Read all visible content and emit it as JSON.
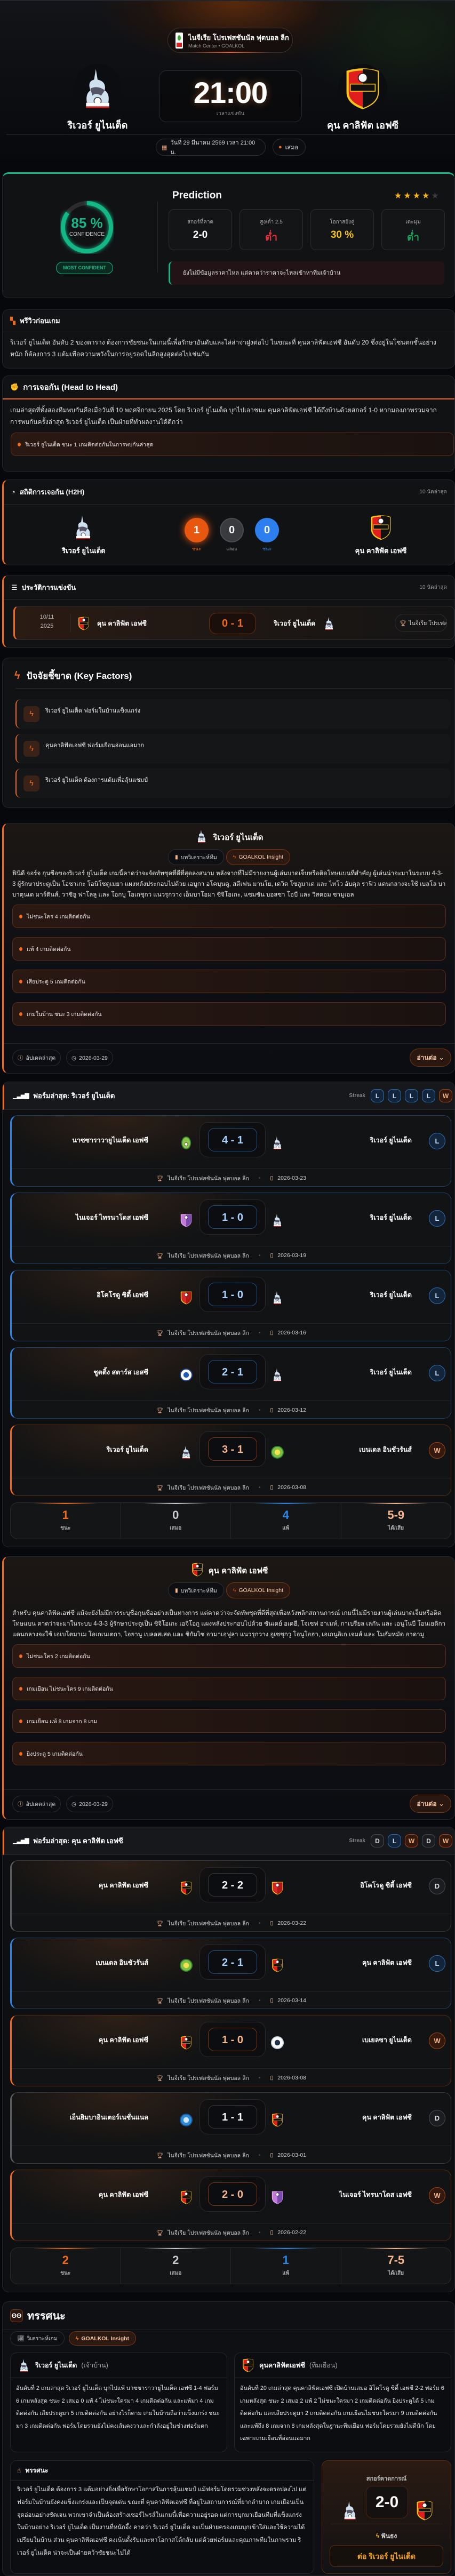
{
  "hero": {
    "league": "ไนจีเรีย โปรเฟสชันนัล ฟุตบอล ลีก",
    "subtitle": "Match Center • GOALKOL",
    "home": "ริเวอร์ ยูไนเต็ด",
    "away": "คุน คาลิฟัต เอฟซี",
    "time": "21:00",
    "time_label": "เวลาแข่งขัน",
    "date": "วันที่ 29 มีนาคม 2569 เวลา 21:00 น.",
    "venue": "เสมอ"
  },
  "prediction": {
    "confidence": "85 %",
    "confidence_value": 85,
    "confidence_label": "CONFIDENCE",
    "badge": "MOST CONFIDENT",
    "title": "Prediction",
    "stars": 4,
    "stars_max": 5,
    "stats": [
      {
        "label": "สกอร์ที่คาด",
        "value": "2-0",
        "color": "#ffffff"
      },
      {
        "label": "สูง/ต่ำ 2.5",
        "value": "ต่ำ",
        "color": "#e0323c"
      },
      {
        "label": "โอกาสยิงคู่",
        "value": "30 %",
        "color": "#f5c518"
      },
      {
        "label": "เตะมุม",
        "value": "ต่ำ",
        "color": "#1e9e5a"
      }
    ],
    "note": "ยังไม่มีข้อมูลราคาไหล แต่คาดว่าราคาจะไหลเข้าหาทีมเจ้าบ้าน"
  },
  "preview": {
    "title": "พรีวิวก่อนเกม",
    "text": "ริเวอร์ ยูไนเต็ด อันดับ 2 ของตาราง ต้องการชัยชนะในเกมนี้เพื่อรักษาอันดับและไล่ล่าจ่าฝูงต่อไป ในขณะที่ คุนคาลิฟัตเอฟซี อันดับ 20 ซึ่งอยู่ในโซนตกชั้นอย่างหนัก ก็ต้องการ 3 แต้มเพื่อความหวังในการอยู่รอดในลีกสูงสุดต่อไปเช่นกัน"
  },
  "h2h_text": {
    "title": "การเจอกัน (Head to Head)",
    "text": "เกมล่าสุดที่ทั้งสองทีมพบกันคือเมื่อวันที่ 10 พฤศจิกายน 2025 โดย ริเวอร์ ยูไนเต็ด บุกไปเอาชนะ คุนคาลิฟัตเอฟซี ได้ถึงบ้านด้วยสกอร์ 1-0 หากมองภาพรวมจากการพบกันครั้งล่าสุด ริเวอร์ ยูไนเต็ด เป็นฝ่ายที่ทำผลงานได้ดีกว่า",
    "bullet": "ริเวอร์ ยูไนเต็ด ชนะ 1 เกมติดต่อกันในการพบกันล่าสุด"
  },
  "h2h_stats": {
    "title": "สถิติการเจอกัน (H2H)",
    "meta": "10 นัดล่าสุด",
    "home": "ริเวอร์ ยูไนเต็ด",
    "away": "คุน คาลิฟัต เอฟซี",
    "home_wins": "1",
    "draws": "0",
    "away_wins": "0",
    "home_label": "ชนะ",
    "draw_label": "เสมอ",
    "away_label": "ชนะ"
  },
  "history": {
    "title": "ประวัติการแข่งขัน",
    "meta": "10 นัดล่าสุด",
    "matches": [
      {
        "day": "10/11",
        "year": "2025",
        "home": "คุน คาลิฟัต เอฟซี",
        "home_logo": "kun",
        "score": "0 - 1",
        "away": "ริเวอร์ ยูไนเต็ด",
        "away_logo": "rivers",
        "league": "ไนจีเรีย โปรเฟสชันนัล ฟุตบอล ลีก"
      }
    ]
  },
  "key_factors": {
    "title": "ปัจจัยชี้ขาด (Key Factors)",
    "items": [
      "ริเวอร์ ยูไนเต็ด ฟอร์มในบ้านแข็งแกร่ง",
      "คุนคาลิฟัตเอฟซี ฟอร์มเยือนอ่อนแอมาก",
      "ริเวอร์ ยูไนเต็ด ต้องการแต้มเพื่อลุ้นแชมป์"
    ]
  },
  "insights": [
    {
      "team": "ริเวอร์ ยูไนเต็ด",
      "logo": "rivers",
      "tab_analysis": "บทวิเคราะห์ทีม",
      "tab_insight": "GOALKOL Insight",
      "text": "ฟินิดี จอร์จ กุนซือของริเวอร์ ยูไนเต็ด เกมนี้คาดว่าจะจัดทัพชุดที่ดีที่สุดลงสนาม หลังจากที่ไม่มีรายงานผู้เล่นบาดเจ็บหรือติดโทษแบนที่สำคัญ ผู้เล่นน่าจะมาในระบบ 4-3-3 ผู้รักษาประตูเป็น โอซาเกะ โอนิโซดูเมยา แผงหลังประกอบไปด้วย เอบูกา อโคบุนดู, สตีเฟน มานโย, เดวิด โซลูมาเด และ ไทโว อับดุล ราฟิว แดนกลางจะใช้ เบลโล บาบาตุนเด มาร์ตินส์, วาซิอู ฟาโลลู และ โอกบู โอเกชุกว แนวรุกวาง เอ็มบาโอมา ชิจิโอเกะ, แซมซัน บอสซา โอบี และ วิสดอม ซามูเอล",
      "bullets": [
        "ไม่ชนะใคร 4 เกมติดต่อกัน",
        "แพ้ 4 เกมติดต่อกัน",
        "เสียประตู 5 เกมติดต่อกัน",
        "เกมในบ้าน ชนะ 3 เกมติดต่อกัน"
      ],
      "updated_label": "อัปเดตล่าสุด",
      "date": "2026-03-29",
      "read_more": "อ่านต่อ"
    },
    {
      "team": "คุน คาลิฟัต เอฟซี",
      "logo": "kun",
      "tab_analysis": "บทวิเคราะห์ทีม",
      "tab_insight": "GOALKOL Insight",
      "text": "สำหรับ คุนคาลิฟัตเอฟซี แม้จะยังไม่มีการระบุชื่อกุนซืออย่างเป็นทางการ แต่คาดว่าจะจัดทัพชุดที่ดีที่สุดเพื่อหวังพลิกสถานการณ์ เกมนี้ไม่มีรายงานผู้เล่นบาดเจ็บหรือติดโทษแบน คาดว่าจะมาในระบบ 4-3-3 ผู้รักษาประตูเป็น ชิจิโอเกะ เอจิโอกู แผงหลังประกอบไปด้วย ซันเดย์ อเดฮี, โจเซฟ อาเมห์, กาเบรียล เลกัน และ เอนูโนบี โอนเยดิกา แดนกลางจะใช้ เอเบโตมาเม โอเกเนเตกา, ไอยานู เบลลสเสด และ ชิกัมไซ อามาเอฟูลา แนวรุกวาง อูเชชุกวู โอนูโอฮา, เอเกนูอิเก เจมส์ และ โมฮัมหมัด อาดามู",
      "bullets": [
        "ไม่ชนะใคร 2 เกมติดต่อกัน",
        "เกมเยือน ไม่ชนะใคร 9 เกมติดต่อกัน",
        "เกมเยือน แพ้ 8 เกมจาก 8 เกม",
        "ยิงประตู 5 เกมติดต่อกัน"
      ],
      "updated_label": "อัปเดตล่าสุด",
      "date": "2026-03-29",
      "read_more": "อ่านต่อ"
    }
  ],
  "forms": [
    {
      "title": "ฟอร์มล่าสุด: ริเวอร์ ยูไนเต็ด",
      "streak_label": "Streak",
      "streak": [
        "L",
        "L",
        "L",
        "L",
        "W"
      ],
      "matches": [
        {
          "home": "นาซซาราวายูไนเต็ด เอฟซี",
          "home_logo": "nasarawa",
          "score": "4 - 1",
          "away": "ริเวอร์ ยูไนเต็ด",
          "away_logo": "rivers",
          "result": "L",
          "league": "ไนจีเรีย โปรเฟสชันนัล ฟุตบอล ลีก",
          "date": "2026-03-23"
        },
        {
          "home": "ไนเจอร์ ไทรนาโดส เอฟซี",
          "home_logo": "niger",
          "score": "1 - 0",
          "away": "ริเวอร์ ยูไนเต็ด",
          "away_logo": "rivers",
          "result": "L",
          "league": "ไนจีเรีย โปรเฟสชันนัล ฟุตบอล ลีก",
          "date": "2026-03-19"
        },
        {
          "home": "อิโคโรดู ซิตี้ เอฟซี",
          "home_logo": "ikorodu",
          "score": "1 - 0",
          "away": "ริเวอร์ ยูไนเต็ด",
          "away_logo": "rivers",
          "result": "L",
          "league": "ไนจีเรีย โปรเฟสชันนัล ฟุตบอล ลีก",
          "date": "2026-03-16"
        },
        {
          "home": "ชูตติ้ง สตาร์ส เอสซี",
          "home_logo": "shooting",
          "score": "2 - 1",
          "away": "ริเวอร์ ยูไนเต็ด",
          "away_logo": "rivers",
          "result": "L",
          "league": "ไนจีเรีย โปรเฟสชันนัล ฟุตบอล ลีก",
          "date": "2026-03-12"
        },
        {
          "home": "ริเวอร์ ยูไนเต็ด",
          "home_logo": "rivers",
          "score": "3 - 1",
          "away": "เบนเดล อินชัวรันส์",
          "away_logo": "bendel",
          "result": "W",
          "league": "ไนจีเรีย โปรเฟสชันนัล ฟุตบอล ลีก",
          "date": "2026-03-08"
        }
      ],
      "summary": {
        "wins": "1",
        "draws": "0",
        "losses": "4",
        "goals": "5-9",
        "wins_label": "ชนะ",
        "draws_label": "เสมอ",
        "losses_label": "แพ้",
        "goals_label": "ได้/เสีย"
      }
    },
    {
      "title": "ฟอร์มล่าสุด: คุน คาลิฟัต เอฟซี",
      "streak_label": "Streak",
      "streak": [
        "D",
        "L",
        "W",
        "D",
        "W"
      ],
      "matches": [
        {
          "home": "คุน คาลิฟัต เอฟซี",
          "home_logo": "kun",
          "score": "2 - 2",
          "away": "อิโคโรดู ซิตี้ เอฟซี",
          "away_logo": "ikorodu",
          "result": "D",
          "league": "ไนจีเรีย โปรเฟสชันนัล ฟุตบอล ลีก",
          "date": "2026-03-22"
        },
        {
          "home": "เบนเดล อินชัวรันส์",
          "home_logo": "bendel",
          "score": "2 - 1",
          "away": "คุน คาลิฟัต เอฟซี",
          "away_logo": "kun",
          "result": "L",
          "league": "ไนจีเรีย โปรเฟสชันนัล ฟุตบอล ลีก",
          "date": "2026-03-14"
        },
        {
          "home": "คุน คาลิฟัต เอฟซี",
          "home_logo": "kun",
          "score": "1 - 0",
          "away": "เบเยลซา ยูไนเต็ด",
          "away_logo": "bayelsa",
          "result": "W",
          "league": "ไนจีเรีย โปรเฟสชันนัล ฟุตบอล ลีก",
          "date": "2026-03-08"
        },
        {
          "home": "เอ็นยิมบาอินเตอร์เนชั่นแนล",
          "home_logo": "nyimba",
          "score": "1 - 1",
          "away": "คุน คาลิฟัต เอฟซี",
          "away_logo": "kun",
          "result": "D",
          "league": "ไนจีเรีย โปรเฟสชันนัล ฟุตบอล ลีก",
          "date": "2026-03-01"
        },
        {
          "home": "คุน คาลิฟัต เอฟซี",
          "home_logo": "kun",
          "score": "2 - 0",
          "away": "ไนเจอร์ ไทรนาโดส เอฟซี",
          "away_logo": "niger",
          "result": "W",
          "league": "ไนจีเรีย โปรเฟสชันนัล ฟุตบอล ลีก",
          "date": "2026-02-22"
        }
      ],
      "summary": {
        "wins": "2",
        "draws": "2",
        "losses": "1",
        "goals": "7-5",
        "wins_label": "ชนะ",
        "draws_label": "เสมอ",
        "losses_label": "แพ้",
        "goals_label": "ได้/เสีย"
      }
    }
  ],
  "analysis": {
    "title": "ทรรศนะ",
    "tab_analysis": "วิเคราะห์เกม",
    "tab_insight": "GOALKOL Insight",
    "home": {
      "name": "ริเวอร์ ยูไนเต็ด",
      "role": "(เจ้าบ้าน)",
      "text": "อันดับที่ 2 เกมล่าสุด ริเวอร์ ยูไนเต็ด บุกไปแพ้ นาซซาราวายูไนเต็ด เอฟซี 1-4 ฟอร์ม 6 เกมหลังสุด ชนะ 2 เสมอ 0 แพ้ 4 ไม่ชนะใครมา 4 เกมติดต่อกัน และแพ้มา 4 เกมติดต่อกัน เสียประตูมา 5 เกมติดต่อกัน อย่างไรก็ตาม เกมในบ้านถือว่าแข็งแกร่ง ชนะมา 3 เกมติดต่อกัน ฟอร์มโดยรวมยังไม่คงเส้นคงวาและกำลังอยู่ในช่วงฟอร์มตก"
    },
    "away": {
      "name": "คุนคาลิฟัตเอฟซี",
      "role": "(ทีมเยือน)",
      "text": "อันดับที่ 20 เกมล่าสุด คุนคาลิฟัตเอฟซี เปิดบ้านเสมอ อิโคโรดู ซิตี้ เอฟซี 2-2 ฟอร์ม 6 เกมหลังสุด ชนะ 2 เสมอ 2 แพ้ 2 ไม่ชนะใครมา 2 เกมติดต่อกัน ยิงประตูได้ 5 เกมติดต่อกัน และเสียประตูมา 2 เกมติดต่อกัน เกมเยือนไม่ชนะใครมา 9 เกมติดต่อกัน และแพ้ถึง 8 เกมจาก 8 เกมหลังสุดในฐานะทีมเยือน ฟอร์มโดยรวมยังไม่ดีนัก โดยเฉพาะเกมเยือนที่อ่อนแอมาก"
    },
    "verdict_title": "ทรรศนะ",
    "verdict_text": "ริเวอร์ ยูไนเต็ด ต้องการ 3 แต้มอย่างยิ่งเพื่อรักษาโอกาสในการลุ้นแชมป์ แม้ฟอร์มโดยรวมช่วงหลังจะดรอปลงไป แต่ฟอร์มในบ้านยังคงแข็งแกร่งและเป็นจุดเด่น ขณะที่ คุนคาลิฟัตเอฟซี ที่อยู่ในสถานการณ์ที่ยากลำบาก เกมเยือนเป็นจุดอ่อนอย่างชัดเจน พวกเขาจำเป็นต้องสร้างเซอร์ไพรส์ในเกมนี้เพื่อความอยู่รอด แต่การบุกมาเยือนทีมที่แข็งแกร่งในบ้านอย่าง ริเวอร์ ยูไนเต็ด เป็นงานที่หนักอึ้ง คาดว่า ริเวอร์ ยูไนเต็ด จะเป็นฝ่ายครองเกมบุกเข้าใส่และใช้ความได้เปรียบในบ้าน ส่วน คุนคาลิฟัตเอฟซี คงเน้นตั้งรับและหาโอกาสโต้กลับ แต่ด้วยฟอร์มและคุณภาพทีมในภาพรวม ริเวอร์ ยูไนเต็ด น่าจะเป็นฝ่ายคว้าชัยชนะไปได้",
    "score_label": "สกอร์คาดการณ์",
    "score": "2-0",
    "pick_label": "ฟันธง",
    "pick": "ต่อ ริเวอร์ ยูไนเต็ด"
  },
  "colors": {
    "accent": "#f06a1a",
    "confidence": "#14b886",
    "loss": "#2d86e6",
    "win": "#f06a1a",
    "draw": "#5a5c62",
    "star": "#f5b50a"
  }
}
